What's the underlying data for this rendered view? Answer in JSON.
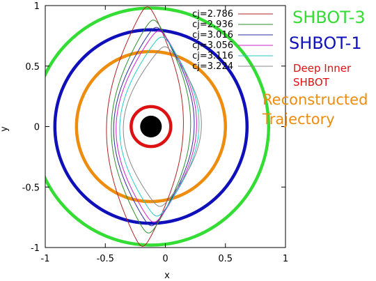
{
  "chart_data": {
    "type": "line",
    "xlabel": "x",
    "ylabel": "y",
    "xlim": [
      -1,
      1
    ],
    "ylim": [
      -1,
      1
    ],
    "xticks": [
      "-1",
      "-0.5",
      "0",
      "0.5",
      "1"
    ],
    "yticks": [
      "1",
      "0.5",
      "0",
      "-0.5",
      "-1"
    ],
    "grid": false,
    "legend_placement": "top-right",
    "series": [
      {
        "name": "cj=2.786",
        "color": "#b22222",
        "x_extent": [
          -0.46,
          0.18
        ],
        "y_extent": [
          -0.99,
          0.99
        ]
      },
      {
        "name": "cj=2.936",
        "color": "#2e8b2e",
        "x_extent": [
          -0.42,
          0.24
        ],
        "y_extent": [
          -0.88,
          0.88
        ]
      },
      {
        "name": "cj=3.016",
        "color": "#2b2b9e",
        "x_extent": [
          -0.4,
          0.27
        ],
        "y_extent": [
          -0.82,
          0.82
        ]
      },
      {
        "name": "cj=3.056",
        "color": "#cc22cc",
        "x_extent": [
          -0.38,
          0.29
        ],
        "y_extent": [
          -0.79,
          0.79
        ]
      },
      {
        "name": "cj=3.116",
        "color": "#22cccc",
        "x_extent": [
          -0.35,
          0.31
        ],
        "y_extent": [
          -0.74,
          0.74
        ]
      },
      {
        "name": "cj=3.224",
        "color": "#888888",
        "x_extent": [
          -0.32,
          0.33
        ],
        "y_extent": [
          -0.66,
          0.66
        ]
      }
    ],
    "circles": [
      {
        "label": "SHBOT-3",
        "color": "#33dd33",
        "cx": -0.12,
        "cy": 0.0,
        "r": 0.98
      },
      {
        "label": "SHBOT-1",
        "color": "#1010bb",
        "cx": -0.12,
        "cy": 0.0,
        "r": 0.8
      },
      {
        "label": "Reconstructed Trajectory",
        "label_lines": [
          "Reconstructed",
          "Trajectory"
        ],
        "color": "#ee8c0e",
        "cx": -0.12,
        "cy": 0.0,
        "r": 0.62
      },
      {
        "label": "Deep Inner SHBOT",
        "label_lines": [
          "Deep Inner",
          "SHBOT"
        ],
        "color": "#dd1111",
        "cx": -0.12,
        "cy": 0.0,
        "r": 0.165
      }
    ],
    "central_body": {
      "cx": -0.12,
      "cy": 0.0,
      "r": 0.09,
      "color": "#000000"
    }
  },
  "annotations": {
    "shbot3": "SHBOT-3",
    "shbot1": "SHBOT-1",
    "deep_inner_1": "Deep Inner",
    "deep_inner_2": "SHBOT",
    "reconstructed_1": "Reconstructed",
    "reconstructed_2": "Trajectory"
  }
}
